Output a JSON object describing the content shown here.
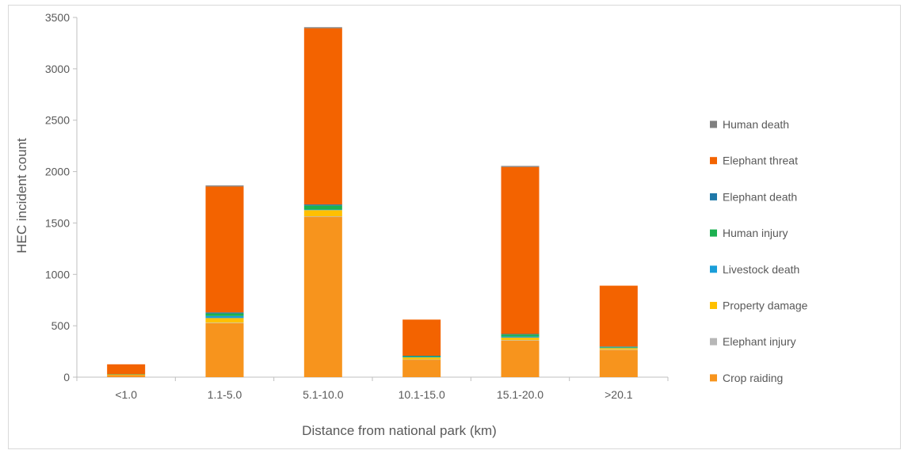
{
  "chart_data": {
    "type": "bar",
    "stacked": true,
    "title": "",
    "xlabel": "Distance from national park (km)",
    "ylabel": "HEC incident count",
    "ylim": [
      0,
      3500
    ],
    "yticks": [
      0,
      500,
      1000,
      1500,
      2000,
      2500,
      3000,
      3500
    ],
    "grid": false,
    "legend_position": "right",
    "categories": [
      "<1.0",
      "1.1-5.0",
      "5.1-10.0",
      "10.1-15.0",
      "15.1-20.0",
      ">20.1"
    ],
    "series": [
      {
        "name": "Crop raiding",
        "color": "#f7941d",
        "values": [
          20,
          525,
          1560,
          170,
          355,
          265
        ]
      },
      {
        "name": "Elephant injury",
        "color": "#b7b7b7",
        "values": [
          0,
          5,
          5,
          2,
          5,
          3
        ]
      },
      {
        "name": "Property damage",
        "color": "#ffc000",
        "values": [
          5,
          45,
          60,
          20,
          25,
          15
        ]
      },
      {
        "name": "Livestock death",
        "color": "#1a9ed9",
        "values": [
          0,
          20,
          5,
          5,
          10,
          5
        ]
      },
      {
        "name": "Human injury",
        "color": "#1cb050",
        "values": [
          3,
          25,
          40,
          8,
          20,
          7
        ]
      },
      {
        "name": "Elephant death",
        "color": "#1f78a8",
        "values": [
          0,
          10,
          10,
          3,
          5,
          3
        ]
      },
      {
        "name": "Elephant threat",
        "color": "#f36300",
        "values": [
          97,
          1225,
          1715,
          352,
          1625,
          592
        ]
      },
      {
        "name": "Human death",
        "color": "#7f7f7f",
        "values": [
          0,
          10,
          10,
          0,
          10,
          0
        ]
      }
    ]
  }
}
